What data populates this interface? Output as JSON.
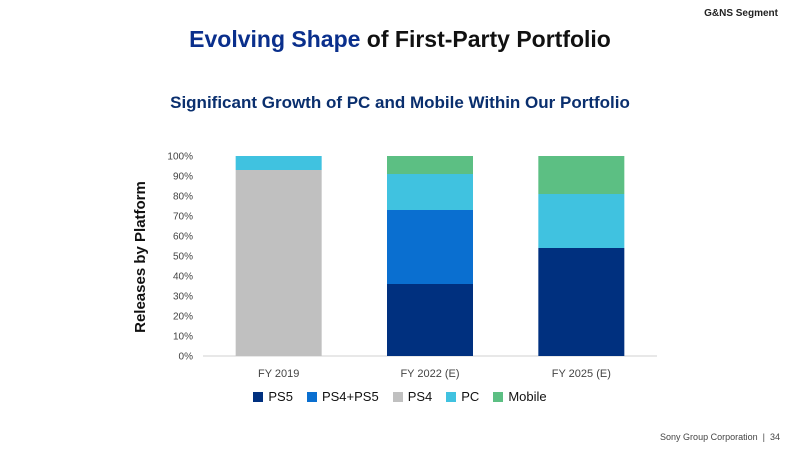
{
  "header": {
    "segment_tag": "G&NS Segment",
    "title_accent": "Evolving Shape",
    "title_rest": " of First-Party Portfolio",
    "subtitle": "Significant Growth of PC and Mobile Within Our Portfolio"
  },
  "footer": {
    "company": "Sony Group Corporation",
    "separator": "|",
    "page_number": "34"
  },
  "chart_data": {
    "type": "bar",
    "stacked": true,
    "ylabel": "Releases by Platform",
    "xlabel": "",
    "ylim": [
      0,
      100
    ],
    "yticks": [
      "0%",
      "10%",
      "20%",
      "30%",
      "40%",
      "50%",
      "60%",
      "70%",
      "80%",
      "90%",
      "100%"
    ],
    "categories": [
      "FY 2019",
      "FY 2022 (E)",
      "FY 2025 (E)"
    ],
    "legend_position": "bottom",
    "grid": false,
    "series": [
      {
        "name": "PS5",
        "color": "#00307f",
        "values": [
          0,
          36,
          54
        ]
      },
      {
        "name": "PS4+PS5",
        "color": "#0a6fd0",
        "values": [
          0,
          37,
          0
        ]
      },
      {
        "name": "PS4",
        "color": "#c0c0c0",
        "values": [
          93,
          0,
          0
        ]
      },
      {
        "name": "PC",
        "color": "#40c2e0",
        "values": [
          7,
          18,
          27
        ]
      },
      {
        "name": "Mobile",
        "color": "#5cbf83",
        "values": [
          0,
          9,
          19
        ]
      }
    ]
  }
}
